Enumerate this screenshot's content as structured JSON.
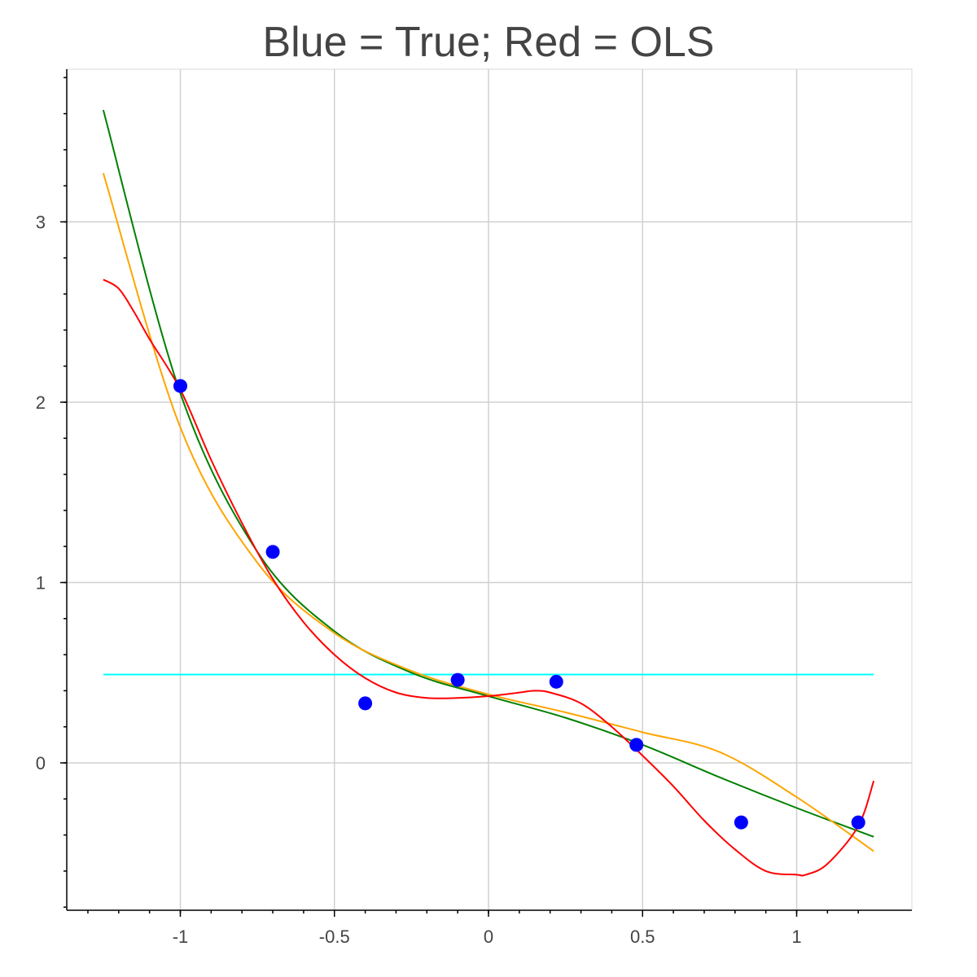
{
  "chart_data": {
    "type": "line",
    "title": "Blue = True; Red = OLS",
    "xlabel": "",
    "ylabel": "",
    "xlim": [
      -1.25,
      1.25
    ],
    "ylim": [
      -0.8,
      3.85
    ],
    "grid": true,
    "x_ticks": [
      {
        "value": -1,
        "label": "-1"
      },
      {
        "value": -0.5,
        "label": "-0.5"
      },
      {
        "value": 0,
        "label": "0"
      },
      {
        "value": 0.5,
        "label": "0.5"
      },
      {
        "value": 1,
        "label": "1"
      }
    ],
    "y_ticks": [
      {
        "value": 0,
        "label": "0"
      },
      {
        "value": 1,
        "label": "1"
      },
      {
        "value": 2,
        "label": "2"
      },
      {
        "value": 3,
        "label": "3"
      }
    ],
    "points": {
      "color": "#0000ff",
      "x": [
        -1.0,
        -0.7,
        -0.4,
        -0.1,
        0.22,
        0.48,
        0.82,
        1.2
      ],
      "y": [
        2.09,
        1.17,
        0.33,
        0.46,
        0.45,
        0.1,
        -0.33,
        -0.33
      ]
    },
    "series": [
      {
        "color": "#00ffff",
        "x": [
          -1.25,
          1.25
        ],
        "y": [
          0.49,
          0.49
        ]
      },
      {
        "color": "#008000",
        "x": [
          -1.25,
          -1.0,
          -0.75,
          -0.5,
          -0.25,
          0.0,
          0.25,
          0.5,
          0.75,
          1.0,
          1.25
        ],
        "y": [
          3.62,
          2.05,
          1.17,
          0.73,
          0.5,
          0.37,
          0.25,
          0.1,
          -0.08,
          -0.25,
          -0.41
        ]
      },
      {
        "color": "#ffa500",
        "x": [
          -1.25,
          -1.0,
          -0.75,
          -0.5,
          -0.25,
          0.0,
          0.25,
          0.5,
          0.75,
          1.0,
          1.25
        ],
        "y": [
          3.27,
          1.86,
          1.11,
          0.72,
          0.51,
          0.38,
          0.28,
          0.17,
          0.06,
          -0.19,
          -0.49
        ]
      },
      {
        "color": "#ff0000",
        "x": [
          -1.25,
          -1.2,
          -1.15,
          -1.1,
          -1.0,
          -0.9,
          -0.8,
          -0.7,
          -0.6,
          -0.5,
          -0.4,
          -0.3,
          -0.2,
          -0.1,
          0.0,
          0.1,
          0.15,
          0.2,
          0.3,
          0.4,
          0.5,
          0.6,
          0.7,
          0.8,
          0.9,
          1.0,
          1.03,
          1.1,
          1.2,
          1.25
        ],
        "y": [
          2.68,
          2.63,
          2.5,
          2.35,
          2.07,
          1.68,
          1.33,
          1.02,
          0.78,
          0.6,
          0.47,
          0.39,
          0.36,
          0.36,
          0.37,
          0.39,
          0.4,
          0.39,
          0.33,
          0.2,
          0.04,
          -0.13,
          -0.32,
          -0.48,
          -0.6,
          -0.62,
          -0.62,
          -0.56,
          -0.35,
          -0.1
        ]
      }
    ]
  }
}
